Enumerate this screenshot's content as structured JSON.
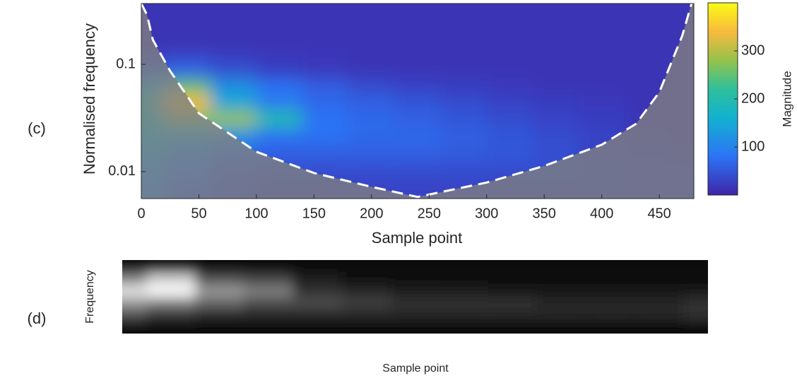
{
  "chart_data": [
    {
      "type": "heatmap",
      "panel_label": "(c)",
      "xlabel": "Sample point",
      "ylabel": "Normalised frequency",
      "colorbar_label": "Magnitude",
      "xlim": [
        0,
        480
      ],
      "xticks": [
        0,
        50,
        100,
        150,
        200,
        250,
        300,
        350,
        400,
        450
      ],
      "ylim": [
        0.0056,
        0.37
      ],
      "yticks": [
        0.01,
        0.1
      ],
      "y_log_scale": true,
      "clim": [
        0,
        400
      ],
      "cticks": [
        100,
        200,
        300
      ],
      "colormap": "parula",
      "x": [
        0,
        40,
        80,
        120,
        160,
        200,
        240,
        280,
        320,
        360,
        400,
        440,
        480
      ],
      "y": [
        0.3,
        0.15,
        0.09,
        0.06,
        0.045,
        0.03,
        0.022,
        0.015,
        0.01,
        0.007
      ],
      "z": [
        [
          15,
          15,
          15,
          15,
          15,
          15,
          15,
          15,
          15,
          15,
          15,
          15,
          15
        ],
        [
          15,
          15,
          15,
          15,
          15,
          15,
          15,
          15,
          15,
          15,
          15,
          15,
          15
        ],
        [
          40,
          60,
          40,
          25,
          20,
          15,
          15,
          15,
          15,
          15,
          15,
          15,
          15
        ],
        [
          150,
          250,
          120,
          80,
          60,
          40,
          30,
          25,
          20,
          15,
          15,
          15,
          15
        ],
        [
          220,
          340,
          150,
          90,
          70,
          60,
          50,
          40,
          30,
          25,
          20,
          15,
          15
        ],
        [
          180,
          260,
          280,
          200,
          80,
          70,
          60,
          50,
          40,
          30,
          25,
          15,
          15
        ],
        [
          160,
          150,
          120,
          80,
          80,
          70,
          70,
          60,
          50,
          40,
          30,
          20,
          15
        ],
        [
          140,
          100,
          70,
          60,
          60,
          60,
          60,
          55,
          50,
          40,
          30,
          25,
          20
        ],
        [
          120,
          80,
          50,
          40,
          40,
          40,
          40,
          40,
          40,
          40,
          35,
          30,
          30
        ],
        [
          100,
          60,
          40,
          30,
          30,
          30,
          30,
          30,
          30,
          30,
          30,
          30,
          30
        ]
      ],
      "coi_x": [
        0,
        5,
        10,
        25,
        50,
        100,
        150,
        200,
        240,
        300,
        350,
        400,
        430,
        450,
        470,
        478
      ],
      "coi_y": [
        0.37,
        0.29,
        0.17,
        0.087,
        0.035,
        0.0153,
        0.0097,
        0.0072,
        0.0058,
        0.0079,
        0.0113,
        0.0178,
        0.028,
        0.055,
        0.186,
        0.37
      ]
    },
    {
      "type": "grayscale",
      "panel_label": "(d)",
      "xlabel": "Sample point",
      "ylabel": "Frequency",
      "zlim": [
        0,
        1
      ],
      "z": [
        [
          0.05,
          0.05,
          0.05,
          0.05,
          0.03,
          0.03,
          0.03,
          0.03,
          0.03,
          0.03,
          0.03,
          0.03,
          0.03
        ],
        [
          0.5,
          0.8,
          0.3,
          0.25,
          0.1,
          0.05,
          0.05,
          0.04,
          0.04,
          0.04,
          0.04,
          0.04,
          0.04
        ],
        [
          0.9,
          1.0,
          0.6,
          0.5,
          0.2,
          0.15,
          0.1,
          0.1,
          0.08,
          0.08,
          0.08,
          0.08,
          0.08
        ],
        [
          0.6,
          0.5,
          0.4,
          0.3,
          0.3,
          0.25,
          0.2,
          0.2,
          0.2,
          0.15,
          0.15,
          0.15,
          0.2
        ],
        [
          0.3,
          0.2,
          0.15,
          0.15,
          0.15,
          0.15,
          0.15,
          0.15,
          0.15,
          0.15,
          0.15,
          0.15,
          0.2
        ],
        [
          0.05,
          0.05,
          0.05,
          0.05,
          0.05,
          0.05,
          0.05,
          0.05,
          0.05,
          0.05,
          0.05,
          0.05,
          0.05
        ]
      ]
    }
  ]
}
